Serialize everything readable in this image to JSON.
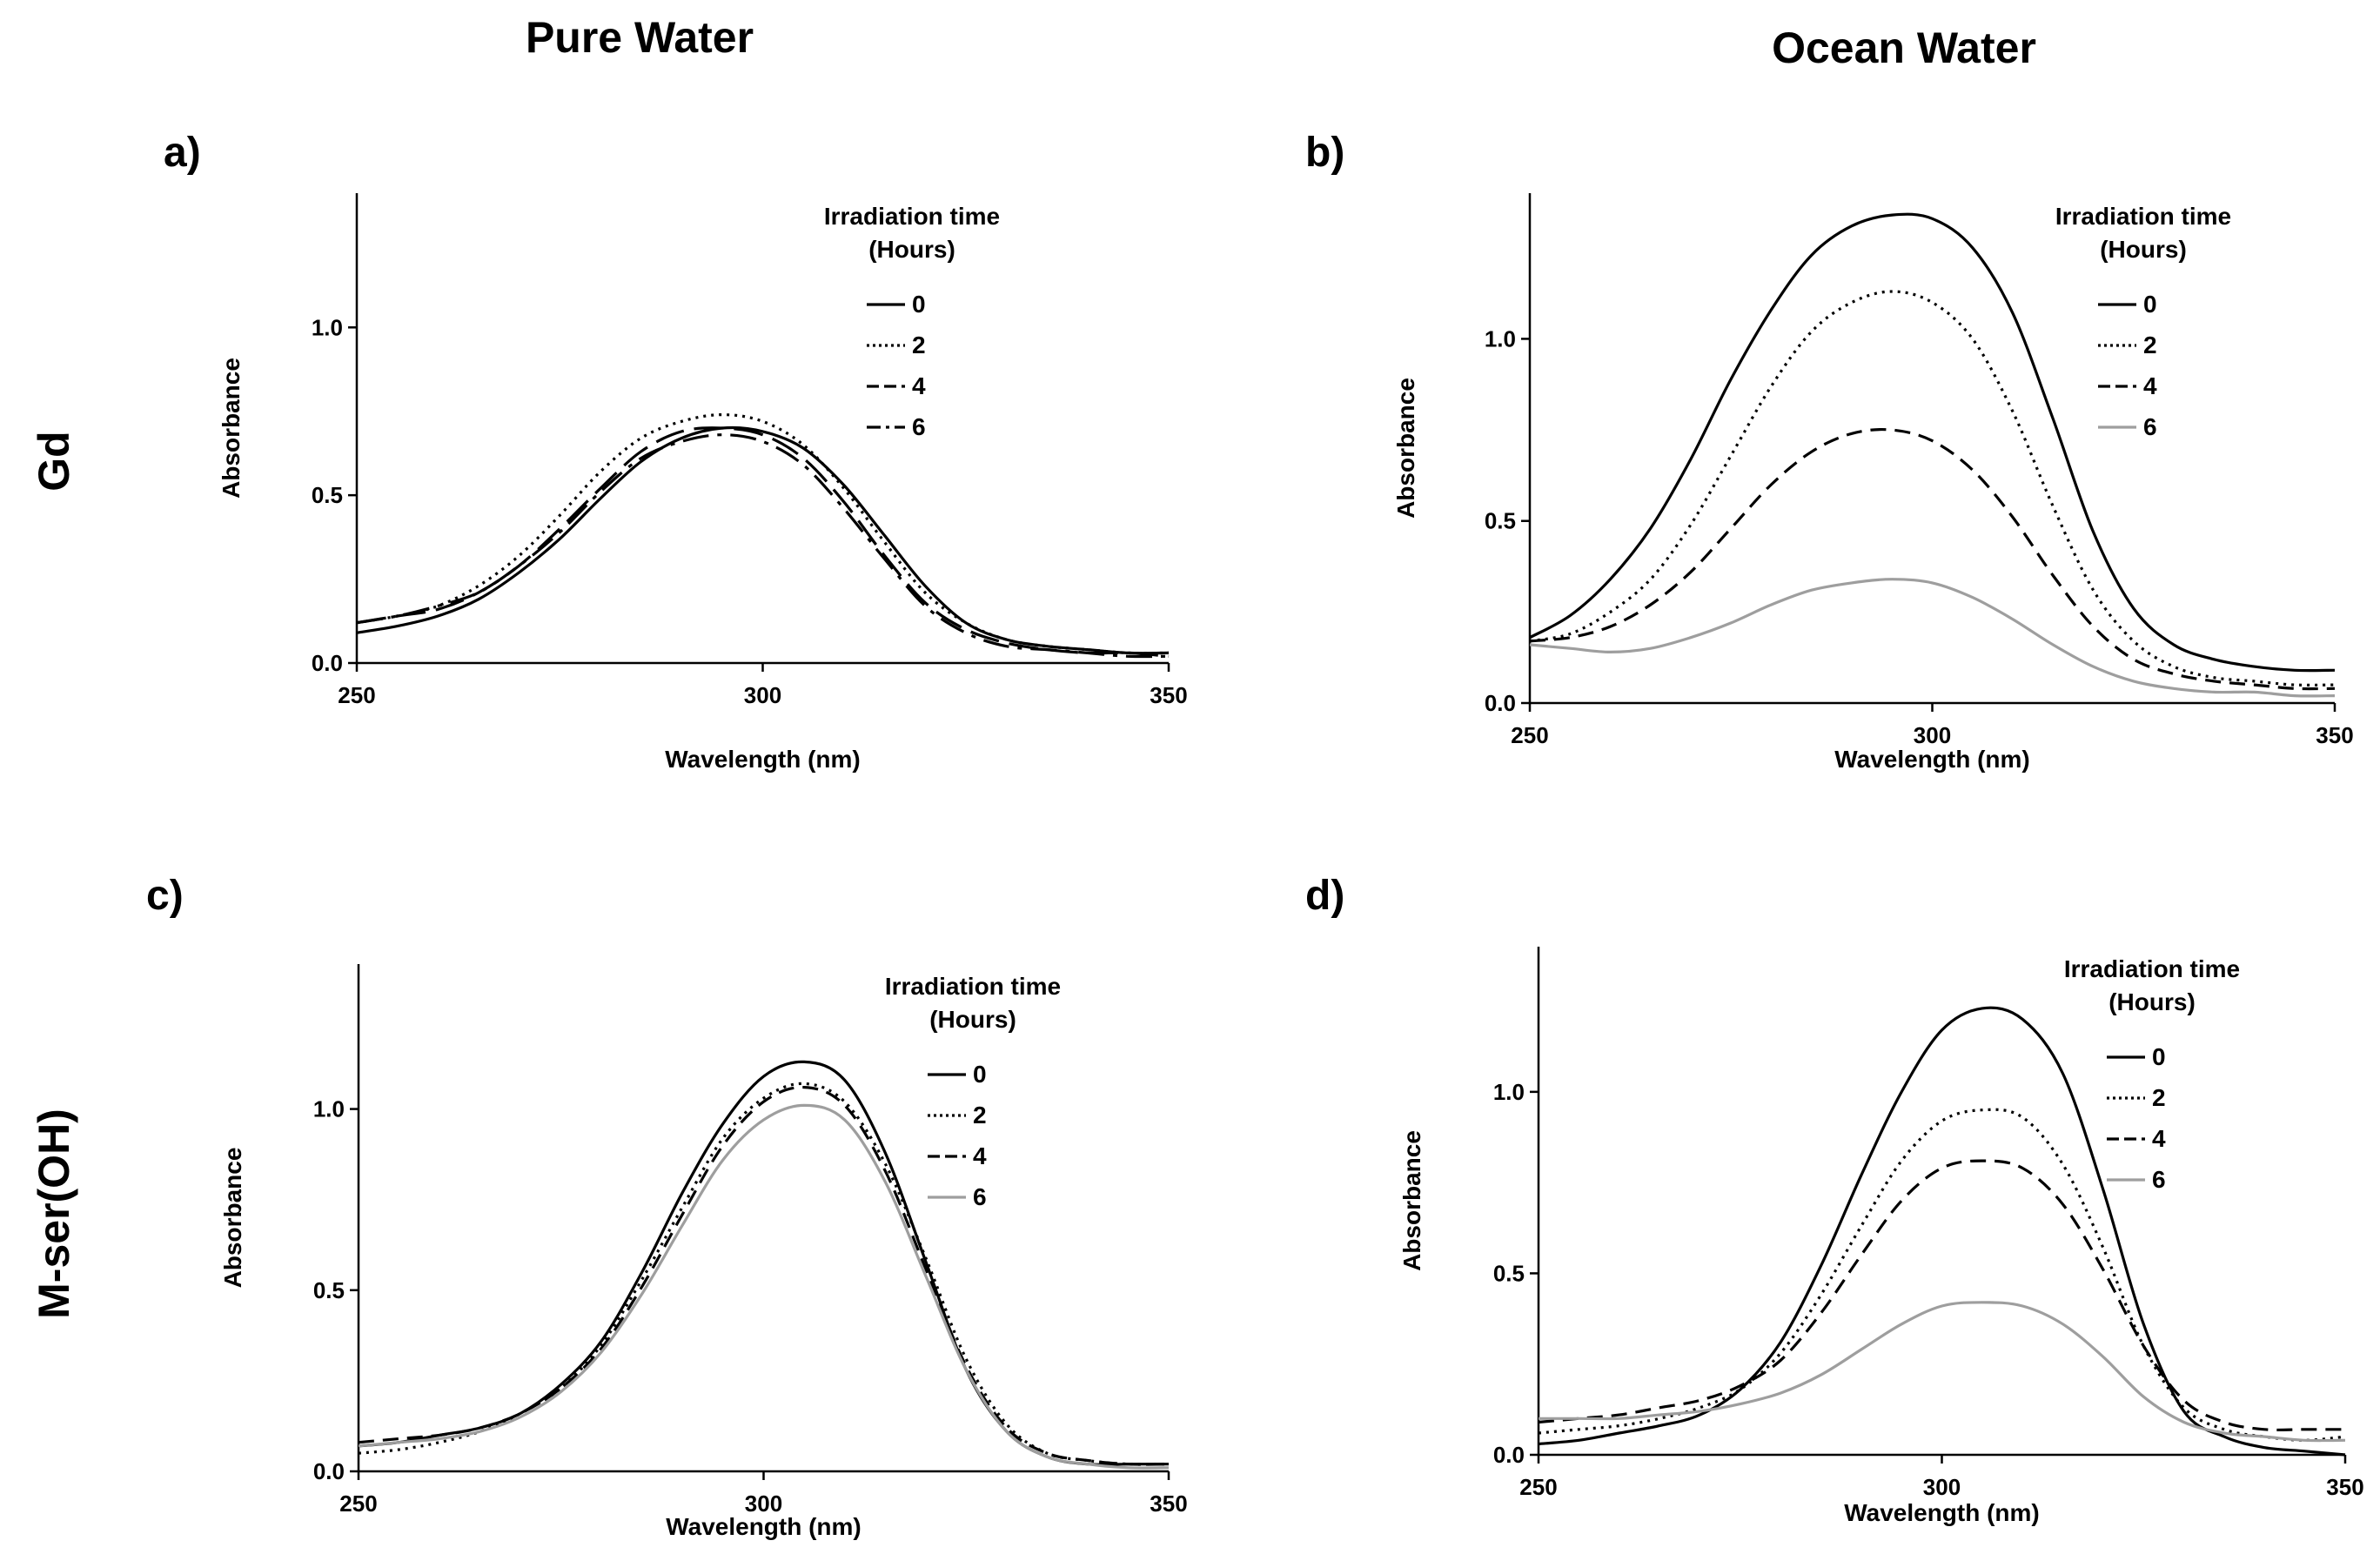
{
  "columns": {
    "left": "Pure Water",
    "right": "Ocean Water"
  },
  "rows": {
    "top": "Gd",
    "bottom": "M-ser(OH)"
  },
  "legend": {
    "title_line1": "Irradiation time",
    "title_line2": "(Hours)"
  },
  "colors": {
    "black": "#000000",
    "gray": "#9e9e9e"
  },
  "chart_data": [
    {
      "panel": "a)",
      "type": "line",
      "xlabel": "Wavelength (nm)",
      "ylabel": "Absorbance",
      "xlim": [
        250,
        350
      ],
      "ylim": [
        0,
        1.4
      ],
      "xticks": [
        250,
        300,
        350
      ],
      "yticks": [
        0.0,
        0.5,
        1.0
      ],
      "x": [
        250,
        255,
        260,
        265,
        270,
        275,
        280,
        285,
        290,
        295,
        300,
        305,
        310,
        315,
        320,
        325,
        330,
        335,
        340,
        345,
        350
      ],
      "series": [
        {
          "name": "0",
          "style": "solid",
          "color": "#000000",
          "values": [
            0.09,
            0.11,
            0.14,
            0.19,
            0.27,
            0.37,
            0.49,
            0.6,
            0.67,
            0.7,
            0.69,
            0.64,
            0.53,
            0.38,
            0.23,
            0.12,
            0.07,
            0.05,
            0.04,
            0.03,
            0.03
          ]
        },
        {
          "name": "2",
          "style": "dotted",
          "color": "#000000",
          "values": [
            0.12,
            0.14,
            0.17,
            0.23,
            0.32,
            0.44,
            0.57,
            0.67,
            0.72,
            0.74,
            0.72,
            0.65,
            0.52,
            0.36,
            0.21,
            0.12,
            0.07,
            0.05,
            0.04,
            0.03,
            0.03
          ]
        },
        {
          "name": "4",
          "style": "longdash",
          "color": "#000000",
          "values": [
            0.12,
            0.14,
            0.16,
            0.21,
            0.29,
            0.4,
            0.52,
            0.63,
            0.69,
            0.7,
            0.68,
            0.61,
            0.48,
            0.32,
            0.18,
            0.1,
            0.06,
            0.04,
            0.03,
            0.03,
            0.02
          ]
        },
        {
          "name": "6",
          "style": "dashdot",
          "color": "#000000",
          "values": [
            0.12,
            0.14,
            0.17,
            0.21,
            0.29,
            0.39,
            0.51,
            0.61,
            0.66,
            0.68,
            0.66,
            0.59,
            0.46,
            0.31,
            0.17,
            0.09,
            0.05,
            0.04,
            0.03,
            0.02,
            0.02
          ]
        }
      ]
    },
    {
      "panel": "b)",
      "type": "line",
      "xlabel": "Wavelength (nm)",
      "ylabel": "Absorbance",
      "xlim": [
        250,
        350
      ],
      "ylim": [
        0,
        1.4
      ],
      "xticks": [
        250,
        300,
        350
      ],
      "yticks": [
        0.0,
        0.5,
        1.0
      ],
      "x": [
        250,
        255,
        260,
        265,
        270,
        275,
        280,
        285,
        290,
        295,
        300,
        305,
        310,
        315,
        320,
        325,
        330,
        335,
        340,
        345,
        350
      ],
      "series": [
        {
          "name": "0",
          "style": "solid",
          "color": "#000000",
          "values": [
            0.18,
            0.24,
            0.34,
            0.48,
            0.67,
            0.89,
            1.08,
            1.23,
            1.31,
            1.34,
            1.33,
            1.25,
            1.07,
            0.78,
            0.47,
            0.26,
            0.16,
            0.12,
            0.1,
            0.09,
            0.09
          ]
        },
        {
          "name": "2",
          "style": "dotted",
          "color": "#000000",
          "values": [
            0.17,
            0.19,
            0.25,
            0.34,
            0.49,
            0.68,
            0.87,
            1.02,
            1.1,
            1.13,
            1.1,
            1.0,
            0.8,
            0.54,
            0.31,
            0.17,
            0.1,
            0.07,
            0.06,
            0.05,
            0.05
          ]
        },
        {
          "name": "4",
          "style": "dashed",
          "color": "#000000",
          "values": [
            0.17,
            0.18,
            0.21,
            0.27,
            0.36,
            0.48,
            0.6,
            0.69,
            0.74,
            0.75,
            0.72,
            0.64,
            0.51,
            0.35,
            0.21,
            0.12,
            0.08,
            0.06,
            0.05,
            0.04,
            0.04
          ]
        },
        {
          "name": "6",
          "style": "solid",
          "color": "#9e9e9e",
          "values": [
            0.16,
            0.15,
            0.14,
            0.15,
            0.18,
            0.22,
            0.27,
            0.31,
            0.33,
            0.34,
            0.33,
            0.29,
            0.23,
            0.16,
            0.1,
            0.06,
            0.04,
            0.03,
            0.03,
            0.02,
            0.02
          ]
        }
      ]
    },
    {
      "panel": "c)",
      "type": "line",
      "xlabel": "Wavelength (nm)",
      "ylabel": "Absorbance",
      "xlim": [
        250,
        350
      ],
      "ylim": [
        0,
        1.4
      ],
      "xticks": [
        250,
        300,
        350
      ],
      "yticks": [
        0.0,
        0.5,
        1.0
      ],
      "x": [
        250,
        255,
        260,
        265,
        270,
        275,
        280,
        285,
        290,
        295,
        300,
        305,
        310,
        315,
        320,
        325,
        330,
        335,
        340,
        345,
        350
      ],
      "series": [
        {
          "name": "0",
          "style": "solid",
          "color": "#000000",
          "values": [
            0.07,
            0.08,
            0.1,
            0.12,
            0.16,
            0.24,
            0.36,
            0.55,
            0.77,
            0.96,
            1.09,
            1.13,
            1.08,
            0.88,
            0.58,
            0.28,
            0.11,
            0.04,
            0.02,
            0.02,
            0.02
          ]
        },
        {
          "name": "2",
          "style": "dotted",
          "color": "#000000",
          "values": [
            0.05,
            0.06,
            0.08,
            0.11,
            0.16,
            0.23,
            0.35,
            0.53,
            0.73,
            0.92,
            1.03,
            1.07,
            1.02,
            0.85,
            0.59,
            0.31,
            0.13,
            0.05,
            0.03,
            0.02,
            0.02
          ]
        },
        {
          "name": "4",
          "style": "dashed",
          "color": "#000000",
          "values": [
            0.08,
            0.09,
            0.1,
            0.12,
            0.16,
            0.23,
            0.34,
            0.51,
            0.71,
            0.9,
            1.02,
            1.06,
            1.01,
            0.83,
            0.56,
            0.29,
            0.12,
            0.05,
            0.03,
            0.02,
            0.02
          ]
        },
        {
          "name": "6",
          "style": "solid",
          "color": "#9e9e9e",
          "values": [
            0.07,
            0.08,
            0.09,
            0.11,
            0.15,
            0.22,
            0.33,
            0.49,
            0.68,
            0.86,
            0.97,
            1.01,
            0.97,
            0.8,
            0.54,
            0.28,
            0.11,
            0.04,
            0.02,
            0.01,
            0.01
          ]
        }
      ]
    },
    {
      "panel": "d)",
      "type": "line",
      "xlabel": "Wavelength (nm)",
      "ylabel": "Absorbance",
      "xlim": [
        250,
        350
      ],
      "ylim": [
        0,
        1.4
      ],
      "xticks": [
        250,
        300,
        350
      ],
      "yticks": [
        0.0,
        0.5,
        1.0
      ],
      "x": [
        250,
        255,
        260,
        265,
        270,
        275,
        280,
        285,
        290,
        295,
        300,
        305,
        310,
        315,
        320,
        325,
        330,
        335,
        340,
        345,
        350
      ],
      "series": [
        {
          "name": "0",
          "style": "solid",
          "color": "#000000",
          "values": [
            0.03,
            0.04,
            0.06,
            0.08,
            0.11,
            0.18,
            0.31,
            0.52,
            0.77,
            1.0,
            1.17,
            1.23,
            1.2,
            1.05,
            0.73,
            0.36,
            0.12,
            0.05,
            0.02,
            0.01,
            0.0
          ]
        },
        {
          "name": "2",
          "style": "dotted",
          "color": "#000000",
          "values": [
            0.06,
            0.07,
            0.08,
            0.1,
            0.13,
            0.18,
            0.28,
            0.44,
            0.63,
            0.81,
            0.92,
            0.95,
            0.93,
            0.8,
            0.57,
            0.3,
            0.13,
            0.07,
            0.05,
            0.04,
            0.05
          ]
        },
        {
          "name": "4",
          "style": "dashed",
          "color": "#000000",
          "values": [
            0.09,
            0.1,
            0.11,
            0.13,
            0.15,
            0.19,
            0.26,
            0.39,
            0.55,
            0.7,
            0.79,
            0.81,
            0.79,
            0.69,
            0.51,
            0.3,
            0.15,
            0.09,
            0.07,
            0.07,
            0.07
          ]
        },
        {
          "name": "6",
          "style": "solid",
          "color": "#9e9e9e",
          "values": [
            0.1,
            0.1,
            0.1,
            0.11,
            0.12,
            0.14,
            0.17,
            0.22,
            0.29,
            0.36,
            0.41,
            0.42,
            0.41,
            0.36,
            0.27,
            0.16,
            0.09,
            0.06,
            0.05,
            0.04,
            0.04
          ]
        }
      ]
    }
  ]
}
